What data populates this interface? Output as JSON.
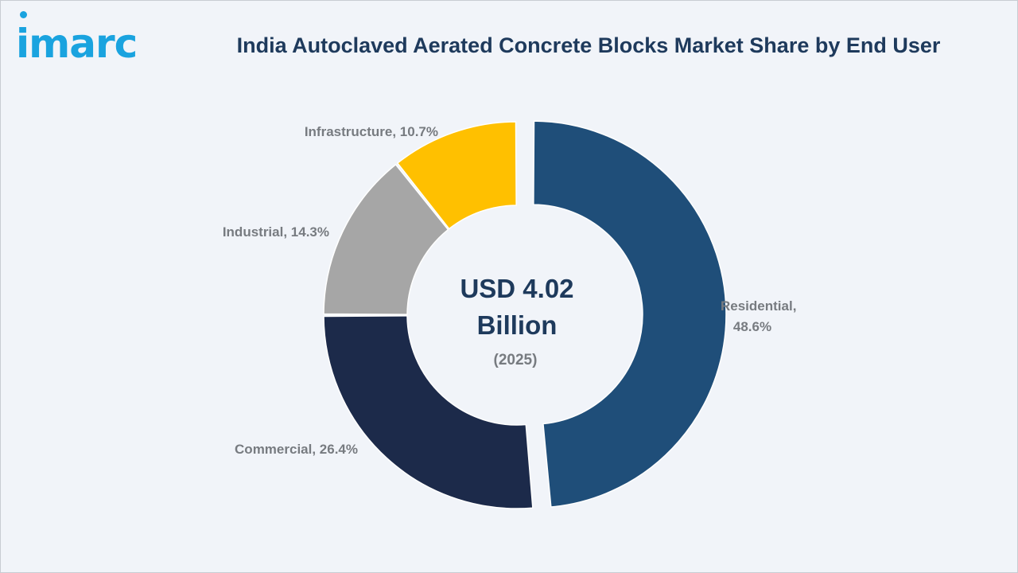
{
  "header": {
    "logo_text": "imarc",
    "title": "India Autoclaved Aerated Concrete Blocks Market Share by End User"
  },
  "chart_data": {
    "type": "pie",
    "variant": "donut",
    "title": "India Autoclaved Aerated Concrete Blocks Market Share by End User",
    "center_value": "USD 4.02",
    "center_unit": "Billion",
    "center_year": "(2025)",
    "slices": [
      {
        "label": "Residential",
        "value": 48.6,
        "display": "48.6%",
        "color": "#1f4e79",
        "exploded": true
      },
      {
        "label": "Commercial",
        "value": 26.4,
        "display": "26.4%",
        "color": "#1c2a4a",
        "exploded": false
      },
      {
        "label": "Industrial",
        "value": 14.3,
        "display": "14.3%",
        "color": "#a6a6a6",
        "exploded": false
      },
      {
        "label": "Infrastructure",
        "value": 10.7,
        "display": "10.7%",
        "color": "#ffc000",
        "exploded": false
      }
    ]
  }
}
